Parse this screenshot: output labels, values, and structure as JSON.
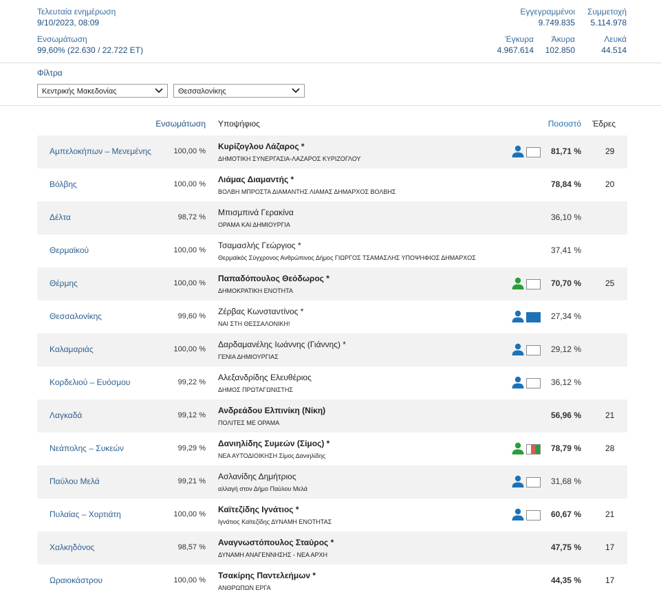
{
  "header": {
    "updated_label": "Τελευταία ενημέρωση",
    "updated_value": "9/10/2023, 08:09",
    "integration_label": "Ενσωμάτωση",
    "integration_value": "99,60% (22.630 / 22.722 ΕΤ)",
    "registered_label": "Εγγεγραμμένοι",
    "registered_value": "9.749.835",
    "turnout_label": "Συμμετοχή",
    "turnout_value": "5.114.978",
    "valid_label": "Έγκυρα",
    "valid_value": "4.967.614",
    "invalid_label": "Άκυρα",
    "invalid_value": "102.850",
    "blank_label": "Λευκά",
    "blank_value": "44.514"
  },
  "filters": {
    "title": "Φίλτρα",
    "region": "Κεντρικής Μακεδονίας",
    "unit": "Θεσσαλονίκης"
  },
  "table": {
    "columns": [
      "Ενσωμάτωση",
      "Υποψήφιος",
      "Ποσοστό",
      "Έδρες"
    ],
    "rows": [
      {
        "municipality": "Αμπελοκήπων – Μενεμένης",
        "integration": "100,00 %",
        "candidate": "Κυρίζογλου Λάζαρος *",
        "party": "ΔΗΜΟΤΙΚΗ ΣΥΝΕΡΓΑΣΙΑ-ΛΑΖΑΡΟΣ ΚΥΡΙΖΟΓΛΟΥ",
        "share": "81,71 %",
        "seats": 29,
        "icon_color": "#1b72b9",
        "badge": "empty"
      },
      {
        "municipality": "Βόλβης",
        "integration": "100,00 %",
        "candidate": "Λιάμας Διαμαντής *",
        "party": "ΒΟΛΒΗ ΜΠΡΟΣΤΑ ΔΙΑΜΑΝΤΗΣ ΛΙΑΜΑΣ ΔΗΜΑΡΧΟΣ ΒΟΛΒΗΣ",
        "share": "78,84 %",
        "seats": 20,
        "icon_color": null,
        "badge": null
      },
      {
        "municipality": "Δέλτα",
        "integration": "98,72 %",
        "candidate": "Μπισμπινά Γερακίνα",
        "party": "ΟΡΑΜΑ ΚΑΙ ΔΗΜΙΟΥΡΓΙΑ",
        "share": "36,10 %",
        "seats": null,
        "icon_color": null,
        "badge": null
      },
      {
        "municipality": "Θερμαϊκού",
        "integration": "100,00 %",
        "candidate": "Τσαμασλής Γεώργιος *",
        "party": "Θερμαϊκός Σύγχρονος Ανθρώπινος Δήμος ΓΙΩΡΓΟΣ ΤΣΑΜΑΣΛΗΣ ΥΠΟΨΗΦΙΟΣ ΔΗΜΑΡΧΟΣ",
        "share": "37,41 %",
        "seats": null,
        "icon_color": null,
        "badge": null
      },
      {
        "municipality": "Θέρμης",
        "integration": "100,00 %",
        "candidate": "Παπαδόπουλος Θεόδωρος *",
        "party": "ΔΗΜΟΚΡΑΤΙΚΗ ΕΝΟΤΗΤΑ",
        "share": "70,70 %",
        "seats": 25,
        "icon_color": "#2a9d3a",
        "badge": "empty"
      },
      {
        "municipality": "Θεσσαλονίκης",
        "integration": "99,60 %",
        "candidate": "Ζέρβας Κωνσταντίνος *",
        "party": "ΝΑΙ ΣΤΗ ΘΕΣΣΑΛΟΝΙΚΗ!",
        "share": "27,34 %",
        "seats": null,
        "icon_color": "#1b72b9",
        "badge": "filled"
      },
      {
        "municipality": "Καλαμαριάς",
        "integration": "100,00 %",
        "candidate": "Δαρδαμανέλης Ιωάννης (Γιάννης) *",
        "party": "ΓΕΝΙΑ ΔΗΜΙΟΥΡΓΙΑΣ",
        "share": "29,12 %",
        "seats": null,
        "icon_color": "#1b72b9",
        "badge": "empty"
      },
      {
        "municipality": "Κορδελιού – Ευόσμου",
        "integration": "99,22 %",
        "candidate": "Αλεξανδρίδης Ελευθέριος",
        "party": "ΔΗΜΟΣ ΠΡΩΤΑΓΩΝΙΣΤΗΣ",
        "share": "36,12 %",
        "seats": null,
        "icon_color": "#1b72b9",
        "badge": "empty"
      },
      {
        "municipality": "Λαγκαδά",
        "integration": "99,12 %",
        "candidate": "Ανδρεάδου Ελπινίκη (Νίκη)",
        "party": "ΠΟΛΙΤΕΣ ΜΕ ΟΡΑΜΑ",
        "share": "56,96 %",
        "seats": 21,
        "icon_color": null,
        "badge": null
      },
      {
        "municipality": "Νεάπολης – Συκεών",
        "integration": "99,29 %",
        "candidate": "Δανιηλίδης Συμεών (Σίμος) *",
        "party": "ΝΕΑ ΑΥΤΟΔΙΟΙΚΗΣΗ Σίμος Δανιηλίδης",
        "share": "78,79 %",
        "seats": 28,
        "icon_color": "#2a9d3a",
        "badge": "flag"
      },
      {
        "municipality": "Παύλου Μελά",
        "integration": "99,21 %",
        "candidate": "Ασλανίδης Δημήτριος",
        "party": "αλλαγή στον Δήμο Παύλου Μελά",
        "share": "31,68 %",
        "seats": null,
        "icon_color": "#1b72b9",
        "badge": "empty"
      },
      {
        "municipality": "Πυλαίας – Χορτιάτη",
        "integration": "100,00 %",
        "candidate": "Καϊτεζίδης Ιγνάτιος *",
        "party": "Ιγνάτιος Καϊτεζίδης ΔΥΝΑΜΗ ΕΝΟΤΗΤΑΣ",
        "share": "60,67 %",
        "seats": 21,
        "icon_color": "#1b72b9",
        "badge": "empty"
      },
      {
        "municipality": "Χαλκηδόνος",
        "integration": "98,57 %",
        "candidate": "Αναγνωστόπουλος Σταύρος *",
        "party": "ΔΥΝΑΜΗ ΑΝΑΓΕΝΝΗΣΗΣ - ΝΕΑ ΑΡΧΗ",
        "share": "47,75 %",
        "seats": 17,
        "icon_color": null,
        "badge": null
      },
      {
        "municipality": "Ωραιοκάστρου",
        "integration": "100,00 %",
        "candidate": "Τσακίρης Παντελεήμων *",
        "party": "ΑΝΘΡΩΠΩΝ ΕΡΓΑ",
        "share": "44,35 %",
        "seats": 17,
        "icon_color": null,
        "badge": null
      }
    ]
  }
}
